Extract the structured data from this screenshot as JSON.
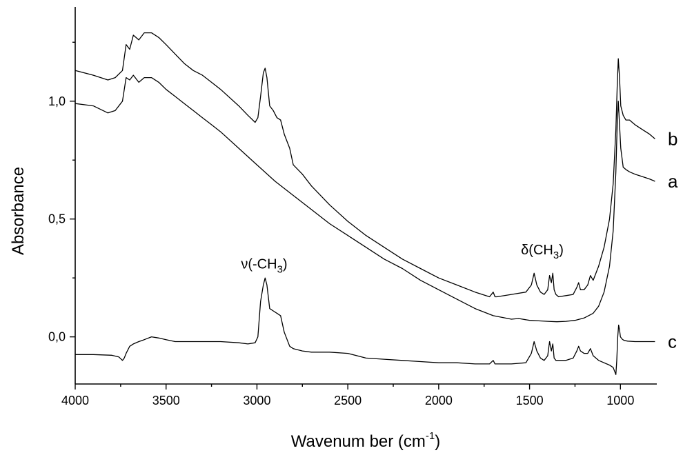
{
  "chart_data": {
    "type": "line",
    "xlabel": "Wavenum ber (cm",
    "xlabel_sup": "-1",
    "xlabel_end": ")",
    "ylabel": "Absorbance",
    "xlim": [
      4000,
      800
    ],
    "ylim": [
      -0.2,
      1.4
    ],
    "xticks": [
      {
        "value": 4000,
        "label": "4000"
      },
      {
        "value": 3500,
        "label": "3500"
      },
      {
        "value": 3000,
        "label": "3000"
      },
      {
        "value": 2500,
        "label": "2500"
      },
      {
        "value": 2000,
        "label": "2000"
      },
      {
        "value": 1500,
        "label": "1500"
      },
      {
        "value": 1000,
        "label": "1000"
      }
    ],
    "yticks": [
      {
        "value": 0.0,
        "label": "0,0"
      },
      {
        "value": 0.5,
        "label": "0,5"
      },
      {
        "value": 1.0,
        "label": "1,0"
      }
    ],
    "grid": false,
    "series": [
      {
        "name": "a",
        "x": [
          4000,
          3900,
          3820,
          3780,
          3740,
          3720,
          3700,
          3680,
          3650,
          3620,
          3580,
          3540,
          3500,
          3450,
          3400,
          3350,
          3300,
          3250,
          3200,
          3100,
          3000,
          2900,
          2800,
          2700,
          2600,
          2500,
          2400,
          2300,
          2200,
          2100,
          2000,
          1900,
          1800,
          1700,
          1600,
          1560,
          1500,
          1450,
          1400,
          1350,
          1300,
          1250,
          1200,
          1150,
          1120,
          1090,
          1060,
          1040,
          1025,
          1018,
          1012,
          1005,
          998,
          985,
          970,
          950,
          920,
          880,
          840,
          810
        ],
        "y": [
          0.99,
          0.98,
          0.95,
          0.96,
          1.0,
          1.1,
          1.09,
          1.11,
          1.08,
          1.1,
          1.1,
          1.08,
          1.05,
          1.02,
          0.99,
          0.96,
          0.93,
          0.9,
          0.87,
          0.8,
          0.73,
          0.66,
          0.6,
          0.54,
          0.48,
          0.43,
          0.38,
          0.33,
          0.29,
          0.24,
          0.2,
          0.16,
          0.12,
          0.09,
          0.075,
          0.078,
          0.07,
          0.068,
          0.066,
          0.064,
          0.066,
          0.07,
          0.08,
          0.1,
          0.13,
          0.19,
          0.3,
          0.45,
          0.7,
          0.9,
          1.0,
          0.9,
          0.8,
          0.72,
          0.71,
          0.7,
          0.69,
          0.68,
          0.67,
          0.66
        ]
      },
      {
        "name": "b",
        "x": [
          4000,
          3900,
          3820,
          3780,
          3740,
          3720,
          3700,
          3680,
          3650,
          3620,
          3580,
          3540,
          3500,
          3450,
          3400,
          3350,
          3300,
          3250,
          3200,
          3100,
          3050,
          3010,
          2995,
          2980,
          2965,
          2955,
          2945,
          2930,
          2910,
          2890,
          2870,
          2850,
          2820,
          2800,
          2750,
          2700,
          2600,
          2500,
          2400,
          2300,
          2200,
          2100,
          2000,
          1900,
          1800,
          1720,
          1700,
          1690,
          1680,
          1600,
          1520,
          1490,
          1475,
          1460,
          1440,
          1420,
          1400,
          1390,
          1380,
          1372,
          1365,
          1355,
          1340,
          1300,
          1260,
          1240,
          1230,
          1220,
          1200,
          1180,
          1165,
          1150,
          1120,
          1090,
          1060,
          1040,
          1025,
          1018,
          1012,
          1005,
          998,
          985,
          970,
          950,
          920,
          880,
          840,
          810
        ],
        "y": [
          1.13,
          1.11,
          1.09,
          1.1,
          1.13,
          1.24,
          1.22,
          1.28,
          1.26,
          1.29,
          1.29,
          1.27,
          1.24,
          1.2,
          1.16,
          1.13,
          1.11,
          1.08,
          1.05,
          0.98,
          0.94,
          0.91,
          0.93,
          1.02,
          1.12,
          1.14,
          1.1,
          0.98,
          0.96,
          0.93,
          0.92,
          0.86,
          0.8,
          0.73,
          0.69,
          0.64,
          0.56,
          0.49,
          0.43,
          0.38,
          0.33,
          0.29,
          0.25,
          0.22,
          0.19,
          0.17,
          0.19,
          0.17,
          0.17,
          0.18,
          0.19,
          0.22,
          0.27,
          0.22,
          0.19,
          0.18,
          0.2,
          0.26,
          0.23,
          0.27,
          0.2,
          0.18,
          0.17,
          0.175,
          0.18,
          0.21,
          0.23,
          0.2,
          0.2,
          0.22,
          0.26,
          0.24,
          0.3,
          0.38,
          0.5,
          0.65,
          0.88,
          1.06,
          1.18,
          1.1,
          0.98,
          0.94,
          0.92,
          0.92,
          0.9,
          0.88,
          0.86,
          0.84
        ]
      },
      {
        "name": "c",
        "x": [
          4000,
          3900,
          3800,
          3760,
          3740,
          3730,
          3720,
          3700,
          3680,
          3650,
          3620,
          3580,
          3540,
          3500,
          3450,
          3400,
          3300,
          3200,
          3100,
          3050,
          3010,
          2995,
          2980,
          2965,
          2955,
          2945,
          2930,
          2910,
          2890,
          2870,
          2850,
          2820,
          2800,
          2750,
          2700,
          2600,
          2500,
          2400,
          2300,
          2200,
          2100,
          2000,
          1900,
          1800,
          1720,
          1700,
          1690,
          1680,
          1600,
          1520,
          1490,
          1475,
          1460,
          1440,
          1420,
          1400,
          1390,
          1380,
          1372,
          1365,
          1355,
          1340,
          1300,
          1260,
          1240,
          1230,
          1220,
          1200,
          1180,
          1165,
          1150,
          1120,
          1060,
          1040,
          1025,
          1020,
          1015,
          1010,
          1005,
          1000,
          990,
          980,
          960,
          920,
          880,
          840,
          810
        ],
        "y": [
          -0.075,
          -0.075,
          -0.078,
          -0.085,
          -0.1,
          -0.09,
          -0.07,
          -0.04,
          -0.03,
          -0.02,
          -0.012,
          0.0,
          -0.005,
          -0.012,
          -0.02,
          -0.02,
          -0.02,
          -0.02,
          -0.025,
          -0.03,
          -0.025,
          0.0,
          0.15,
          0.22,
          0.25,
          0.22,
          0.12,
          0.11,
          0.1,
          0.09,
          0.02,
          -0.04,
          -0.05,
          -0.06,
          -0.065,
          -0.065,
          -0.07,
          -0.09,
          -0.095,
          -0.1,
          -0.105,
          -0.11,
          -0.11,
          -0.115,
          -0.115,
          -0.1,
          -0.115,
          -0.115,
          -0.115,
          -0.11,
          -0.07,
          -0.02,
          -0.06,
          -0.09,
          -0.1,
          -0.08,
          -0.02,
          -0.06,
          -0.03,
          -0.09,
          -0.1,
          -0.1,
          -0.1,
          -0.09,
          -0.06,
          -0.04,
          -0.06,
          -0.07,
          -0.07,
          -0.05,
          -0.08,
          -0.1,
          -0.12,
          -0.13,
          -0.16,
          -0.1,
          0.0,
          0.05,
          0.03,
          0.0,
          -0.01,
          -0.015,
          -0.018,
          -0.02,
          -0.02,
          -0.02,
          -0.02
        ]
      }
    ],
    "annotations": [
      {
        "text": "ν(-CH",
        "sub": "3",
        "end": ")",
        "x": 2960,
        "y": 0.29
      },
      {
        "text": "δ(CH",
        "sub": "3",
        "end": ")",
        "x": 1430,
        "y": 0.35
      }
    ]
  }
}
